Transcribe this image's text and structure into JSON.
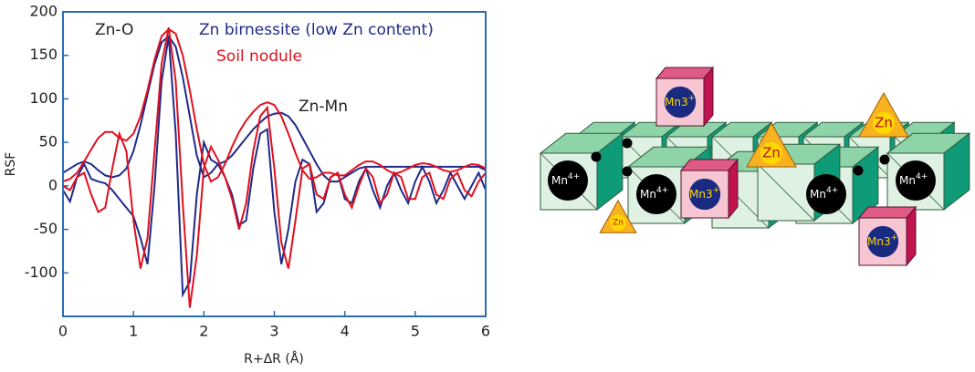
{
  "chart_data": {
    "type": "line",
    "x_label": "R+ΔR (Å)",
    "y_label": "RSF",
    "annotations": [
      "Zn-O",
      "Zn-Mn"
    ],
    "x": [
      0,
      0.1,
      0.2,
      0.3,
      0.4,
      0.5,
      0.6,
      0.7,
      0.8,
      0.9,
      1,
      1.1,
      1.2,
      1.3,
      1.4,
      1.5,
      1.6,
      1.7,
      1.8,
      1.9,
      2,
      2.1,
      2.2,
      2.3,
      2.4,
      2.5,
      2.6,
      2.7,
      2.8,
      2.9,
      3,
      3.1,
      3.2,
      3.3,
      3.4,
      3.5,
      3.6,
      3.7,
      3.8,
      3.9,
      4,
      4.1,
      4.2,
      4.3,
      4.4,
      4.5,
      4.6,
      4.7,
      4.8,
      4.9,
      5,
      5.1,
      5.2,
      5.3,
      5.4,
      5.5,
      5.6,
      5.7,
      5.8,
      5.9,
      6
    ],
    "series": [
      {
        "name": "Zn birnessite (low Zn content)",
        "color": "#1f2a8a",
        "values": [
          15,
          20,
          25,
          28,
          25,
          18,
          12,
          10,
          12,
          20,
          40,
          70,
          105,
          140,
          165,
          172,
          160,
          125,
          80,
          35,
          10,
          15,
          25,
          28,
          35,
          45,
          55,
          65,
          73,
          80,
          83,
          84,
          80,
          70,
          55,
          40,
          25,
          12,
          5,
          5,
          10,
          15,
          20,
          22,
          22,
          22,
          22,
          22,
          22,
          22,
          22,
          22,
          22,
          22,
          22,
          22,
          22,
          22,
          22,
          22,
          18
        ],
        "imaginary": [
          -5,
          -18,
          10,
          25,
          8,
          5,
          3,
          -5,
          -15,
          -25,
          -35,
          -60,
          -90,
          0,
          120,
          172,
          60,
          -125,
          -110,
          -10,
          50,
          30,
          25,
          10,
          -10,
          -45,
          -40,
          20,
          60,
          65,
          -30,
          -90,
          -50,
          5,
          30,
          25,
          -30,
          -20,
          10,
          15,
          -15,
          -20,
          5,
          20,
          -5,
          -25,
          0,
          15,
          -5,
          -20,
          5,
          22,
          5,
          -20,
          -5,
          15,
          0,
          -15,
          0,
          15,
          -5
        ]
      },
      {
        "name": "Soil nodule",
        "color": "#e0101e",
        "values": [
          5,
          8,
          15,
          28,
          42,
          55,
          62,
          62,
          55,
          52,
          60,
          80,
          110,
          145,
          172,
          180,
          175,
          150,
          110,
          65,
          25,
          5,
          10,
          25,
          45,
          62,
          75,
          85,
          93,
          96,
          93,
          80,
          60,
          38,
          18,
          8,
          10,
          15,
          15,
          12,
          12,
          18,
          24,
          28,
          28,
          24,
          18,
          14,
          16,
          20,
          24,
          26,
          25,
          22,
          18,
          16,
          18,
          22,
          25,
          24,
          20
        ],
        "imaginary": [
          0,
          -5,
          10,
          15,
          -10,
          -30,
          -25,
          20,
          60,
          40,
          -40,
          -95,
          -60,
          40,
          140,
          182,
          120,
          -20,
          -140,
          -80,
          20,
          45,
          30,
          10,
          -15,
          -50,
          -20,
          40,
          80,
          90,
          20,
          -65,
          -95,
          -40,
          20,
          25,
          -10,
          -15,
          10,
          15,
          -10,
          -25,
          0,
          20,
          10,
          -20,
          -10,
          15,
          10,
          -15,
          -15,
          10,
          15,
          -10,
          -15,
          8,
          15,
          -5,
          -12,
          5,
          15
        ]
      }
    ],
    "xlim": [
      0,
      6
    ],
    "xticks": [
      0,
      1,
      2,
      3,
      4,
      5,
      6
    ],
    "ylim": [
      -150,
      200
    ],
    "yticks": [
      -100,
      -50,
      0,
      50,
      100,
      150,
      200
    ]
  },
  "diagram": {
    "mn4": {
      "base": "Mn",
      "sup": "4+"
    },
    "mn3": {
      "base": "Mn3",
      "sup": "+"
    },
    "zn": "Zn"
  }
}
